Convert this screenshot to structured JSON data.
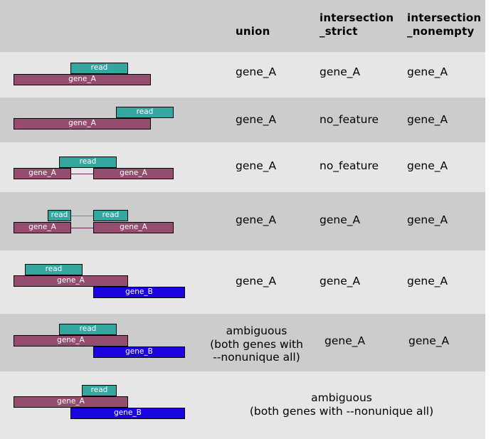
{
  "header": {
    "col1": "union",
    "col2": "intersection\n_strict",
    "col3": "intersection\n_nonempty"
  },
  "labels": {
    "read": "read",
    "gene_a": "gene_A",
    "gene_b": "gene_B"
  },
  "rows": [
    {
      "union": "gene_A",
      "strict": "gene_A",
      "nonempty": "gene_A"
    },
    {
      "union": "gene_A",
      "strict": "no_feature",
      "nonempty": "gene_A"
    },
    {
      "union": "gene_A",
      "strict": "no_feature",
      "nonempty": "gene_A"
    },
    {
      "union": "gene_A",
      "strict": "gene_A",
      "nonempty": "gene_A"
    },
    {
      "union": "gene_A",
      "strict": "gene_A",
      "nonempty": "gene_A"
    },
    {
      "union": "ambiguous\n(both genes with\n--nonunique all)",
      "strict": "gene_A",
      "nonempty": "gene_A"
    },
    {
      "merged": "ambiguous\n(both genes with --nonunique all)"
    }
  ],
  "colors": {
    "read": "#33a6a0",
    "gene_a": "#944d6e",
    "gene_b": "#1a05e0",
    "row_dark": "#cccccc",
    "row_light": "#e6e6e6"
  }
}
